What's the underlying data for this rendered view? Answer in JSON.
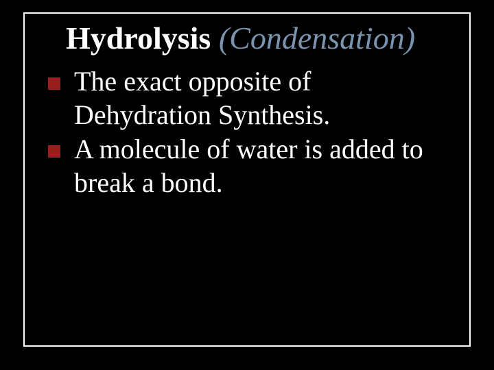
{
  "slide": {
    "background_color": "#000000",
    "frame_border_color": "#ffffff",
    "frame_border_width": 2,
    "title": {
      "part1": "Hydrolysis ",
      "part2": "(Condensation)",
      "part1_color": "#ffffff",
      "part1_weight": "bold",
      "part2_color": "#7a94b0",
      "part2_style": "italic",
      "fontsize": 46,
      "font_family": "Georgia, Times New Roman, serif"
    },
    "bullets": {
      "marker_color": "#991f1f",
      "marker_size": 18,
      "text_color": "#ffffff",
      "fontsize": 40,
      "font_family": "Book Antiqua, Palatino, Georgia, serif",
      "items": [
        "The exact opposite of Dehydration Synthesis.",
        "A molecule of water is added to break a bond."
      ]
    }
  }
}
